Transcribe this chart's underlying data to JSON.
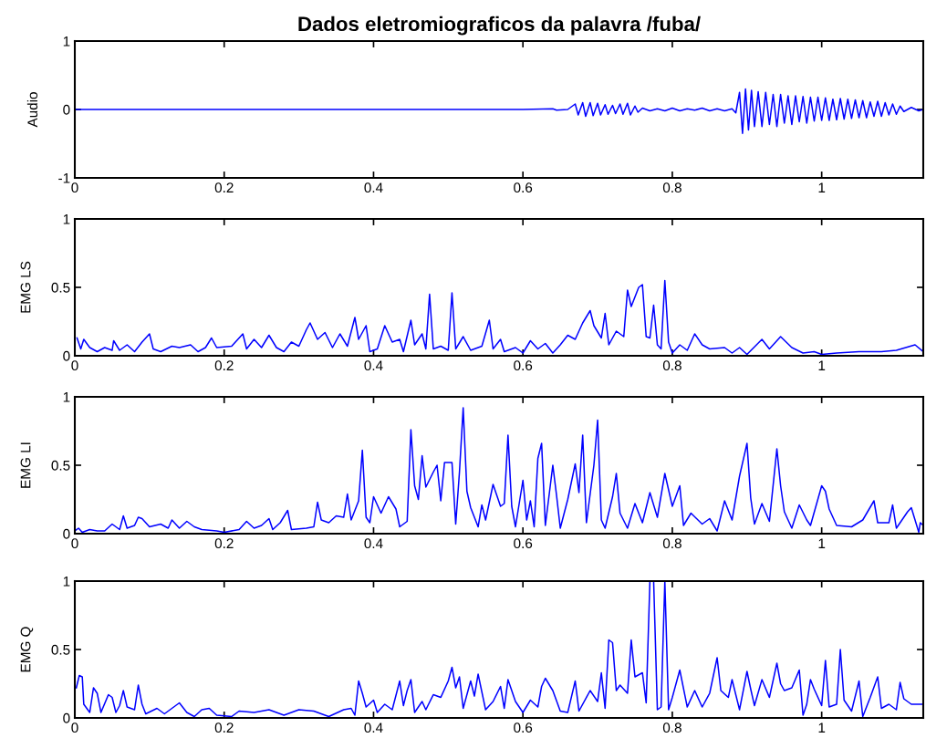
{
  "chart_data": [
    {
      "type": "line",
      "title": "Dados eletromiograficos da palavra /fuba/",
      "ylabel": "Audio",
      "color": "#0000ff",
      "xlim": [
        0,
        1.136
      ],
      "xticks": [
        0,
        0.2,
        0.4,
        0.6,
        0.8,
        1
      ],
      "ylim": [
        -1,
        1
      ],
      "yticks": [
        -1,
        0,
        1
      ],
      "x": [
        0,
        0.3,
        0.6,
        0.64,
        0.645,
        0.66,
        0.67,
        0.674,
        0.68,
        0.684,
        0.69,
        0.694,
        0.7,
        0.704,
        0.71,
        0.714,
        0.72,
        0.724,
        0.73,
        0.734,
        0.74,
        0.744,
        0.75,
        0.754,
        0.76,
        0.77,
        0.78,
        0.79,
        0.8,
        0.81,
        0.82,
        0.83,
        0.84,
        0.85,
        0.86,
        0.87,
        0.88,
        0.885,
        0.89,
        0.894,
        0.898,
        0.902,
        0.906,
        0.91,
        0.915,
        0.92,
        0.925,
        0.93,
        0.935,
        0.94,
        0.945,
        0.95,
        0.955,
        0.96,
        0.965,
        0.97,
        0.975,
        0.98,
        0.985,
        0.99,
        0.995,
        1.0,
        1.005,
        1.01,
        1.015,
        1.02,
        1.025,
        1.03,
        1.035,
        1.04,
        1.045,
        1.05,
        1.055,
        1.06,
        1.065,
        1.07,
        1.075,
        1.08,
        1.085,
        1.09,
        1.095,
        1.1,
        1.105,
        1.11,
        1.12,
        1.13,
        1.136
      ],
      "values": [
        0,
        0,
        0,
        0.01,
        -0.01,
        0,
        0.08,
        -0.08,
        0.1,
        -0.1,
        0.1,
        -0.09,
        0.09,
        -0.08,
        0.07,
        -0.07,
        0.06,
        -0.06,
        0.08,
        -0.07,
        0.09,
        -0.08,
        0.05,
        -0.04,
        0.02,
        -0.02,
        0.01,
        -0.02,
        0.02,
        -0.02,
        0.01,
        -0.01,
        0.02,
        -0.02,
        0.01,
        -0.02,
        0.01,
        -0.05,
        0.25,
        -0.35,
        0.3,
        -0.3,
        0.28,
        -0.25,
        0.26,
        -0.25,
        0.25,
        -0.22,
        0.22,
        -0.25,
        0.22,
        -0.2,
        0.2,
        -0.22,
        0.2,
        -0.18,
        0.19,
        -0.2,
        0.18,
        -0.17,
        0.18,
        -0.16,
        0.17,
        -0.16,
        0.15,
        -0.15,
        0.16,
        -0.14,
        0.15,
        -0.13,
        0.14,
        -0.12,
        0.13,
        -0.12,
        0.11,
        -0.1,
        0.12,
        -0.1,
        0.1,
        -0.08,
        0.08,
        -0.07,
        0.05,
        -0.03,
        0.03,
        -0.02,
        0
      ]
    },
    {
      "type": "line",
      "ylabel": "EMG LS",
      "color": "#0000ff",
      "xlim": [
        0,
        1.136
      ],
      "xticks": [
        0,
        0.2,
        0.4,
        0.6,
        0.8,
        1
      ],
      "ylim": [
        0,
        1
      ],
      "yticks": [
        0,
        0.5,
        1
      ],
      "x": [
        0.003,
        0.008,
        0.012,
        0.02,
        0.03,
        0.04,
        0.05,
        0.052,
        0.06,
        0.07,
        0.08,
        0.09,
        0.1,
        0.105,
        0.115,
        0.13,
        0.14,
        0.155,
        0.165,
        0.175,
        0.183,
        0.19,
        0.21,
        0.225,
        0.23,
        0.24,
        0.25,
        0.26,
        0.27,
        0.28,
        0.29,
        0.3,
        0.31,
        0.315,
        0.325,
        0.335,
        0.345,
        0.355,
        0.365,
        0.375,
        0.38,
        0.39,
        0.395,
        0.405,
        0.415,
        0.425,
        0.435,
        0.44,
        0.45,
        0.455,
        0.465,
        0.47,
        0.475,
        0.48,
        0.49,
        0.5,
        0.505,
        0.51,
        0.52,
        0.53,
        0.545,
        0.555,
        0.56,
        0.57,
        0.575,
        0.59,
        0.6,
        0.61,
        0.62,
        0.63,
        0.64,
        0.65,
        0.66,
        0.67,
        0.68,
        0.69,
        0.695,
        0.705,
        0.71,
        0.715,
        0.725,
        0.735,
        0.74,
        0.745,
        0.755,
        0.76,
        0.765,
        0.77,
        0.775,
        0.78,
        0.785,
        0.79,
        0.795,
        0.8,
        0.81,
        0.82,
        0.83,
        0.84,
        0.85,
        0.87,
        0.88,
        0.89,
        0.9,
        0.92,
        0.93,
        0.945,
        0.96,
        0.975,
        0.99,
        1.0,
        1.02,
        1.05,
        1.08,
        1.1,
        1.125,
        1.136
      ],
      "values": [
        0.13,
        0.05,
        0.12,
        0.06,
        0.03,
        0.06,
        0.04,
        0.11,
        0.04,
        0.08,
        0.03,
        0.1,
        0.16,
        0.05,
        0.03,
        0.07,
        0.06,
        0.08,
        0.03,
        0.06,
        0.13,
        0.06,
        0.07,
        0.16,
        0.05,
        0.12,
        0.06,
        0.15,
        0.06,
        0.03,
        0.1,
        0.07,
        0.19,
        0.24,
        0.12,
        0.17,
        0.06,
        0.16,
        0.07,
        0.28,
        0.12,
        0.22,
        0.03,
        0.05,
        0.22,
        0.1,
        0.12,
        0.03,
        0.26,
        0.08,
        0.16,
        0.05,
        0.45,
        0.05,
        0.07,
        0.04,
        0.46,
        0.05,
        0.14,
        0.04,
        0.07,
        0.26,
        0.05,
        0.12,
        0.03,
        0.06,
        0.02,
        0.11,
        0.05,
        0.09,
        0.02,
        0.08,
        0.15,
        0.12,
        0.24,
        0.33,
        0.22,
        0.13,
        0.31,
        0.08,
        0.18,
        0.14,
        0.48,
        0.36,
        0.5,
        0.52,
        0.14,
        0.13,
        0.37,
        0.08,
        0.05,
        0.55,
        0.1,
        0.02,
        0.08,
        0.04,
        0.16,
        0.08,
        0.05,
        0.06,
        0.02,
        0.06,
        0.01,
        0.12,
        0.05,
        0.14,
        0.06,
        0.02,
        0.03,
        0.01,
        0.02,
        0.03,
        0.03,
        0.04,
        0.08,
        0.03
      ]
    },
    {
      "type": "line",
      "ylabel": "EMG LI",
      "color": "#0000ff",
      "xlim": [
        0,
        1.136
      ],
      "xticks": [
        0,
        0.2,
        0.4,
        0.6,
        0.8,
        1
      ],
      "ylim": [
        0,
        1
      ],
      "yticks": [
        0,
        0.5,
        1
      ],
      "x": [
        0,
        0.005,
        0.01,
        0.02,
        0.03,
        0.04,
        0.05,
        0.06,
        0.065,
        0.07,
        0.08,
        0.085,
        0.09,
        0.1,
        0.115,
        0.125,
        0.13,
        0.14,
        0.15,
        0.16,
        0.17,
        0.19,
        0.2,
        0.22,
        0.23,
        0.24,
        0.25,
        0.26,
        0.265,
        0.275,
        0.285,
        0.29,
        0.31,
        0.32,
        0.325,
        0.33,
        0.34,
        0.35,
        0.36,
        0.365,
        0.37,
        0.38,
        0.385,
        0.39,
        0.395,
        0.4,
        0.41,
        0.42,
        0.43,
        0.435,
        0.445,
        0.45,
        0.455,
        0.46,
        0.465,
        0.47,
        0.48,
        0.485,
        0.49,
        0.495,
        0.505,
        0.51,
        0.515,
        0.52,
        0.525,
        0.53,
        0.54,
        0.545,
        0.55,
        0.56,
        0.57,
        0.575,
        0.58,
        0.585,
        0.59,
        0.6,
        0.605,
        0.61,
        0.615,
        0.62,
        0.625,
        0.63,
        0.64,
        0.645,
        0.65,
        0.66,
        0.67,
        0.675,
        0.68,
        0.685,
        0.695,
        0.7,
        0.705,
        0.71,
        0.72,
        0.725,
        0.73,
        0.74,
        0.75,
        0.76,
        0.77,
        0.78,
        0.79,
        0.8,
        0.81,
        0.815,
        0.825,
        0.84,
        0.85,
        0.86,
        0.87,
        0.88,
        0.89,
        0.9,
        0.905,
        0.91,
        0.92,
        0.93,
        0.94,
        0.945,
        0.95,
        0.96,
        0.97,
        0.98,
        0.985,
        1.0,
        1.005,
        1.01,
        1.02,
        1.04,
        1.055,
        1.07,
        1.075,
        1.09,
        1.095,
        1.1,
        1.115,
        1.12,
        1.13,
        1.132,
        1.136
      ],
      "values": [
        0.02,
        0.04,
        0.01,
        0.03,
        0.02,
        0.02,
        0.07,
        0.03,
        0.13,
        0.04,
        0.06,
        0.12,
        0.11,
        0.05,
        0.07,
        0.04,
        0.1,
        0.04,
        0.09,
        0.05,
        0.03,
        0.02,
        0.01,
        0.03,
        0.09,
        0.04,
        0.06,
        0.11,
        0.03,
        0.08,
        0.17,
        0.03,
        0.04,
        0.05,
        0.23,
        0.1,
        0.08,
        0.13,
        0.12,
        0.29,
        0.1,
        0.24,
        0.61,
        0.12,
        0.08,
        0.27,
        0.15,
        0.27,
        0.18,
        0.05,
        0.09,
        0.76,
        0.35,
        0.25,
        0.57,
        0.34,
        0.45,
        0.5,
        0.24,
        0.52,
        0.52,
        0.07,
        0.45,
        0.92,
        0.31,
        0.19,
        0.05,
        0.21,
        0.1,
        0.36,
        0.2,
        0.22,
        0.72,
        0.2,
        0.05,
        0.39,
        0.1,
        0.24,
        0.05,
        0.55,
        0.66,
        0.06,
        0.5,
        0.28,
        0.04,
        0.25,
        0.51,
        0.3,
        0.72,
        0.08,
        0.5,
        0.83,
        0.1,
        0.04,
        0.27,
        0.44,
        0.15,
        0.04,
        0.22,
        0.08,
        0.3,
        0.12,
        0.44,
        0.2,
        0.35,
        0.06,
        0.15,
        0.07,
        0.11,
        0.02,
        0.24,
        0.1,
        0.42,
        0.66,
        0.26,
        0.07,
        0.22,
        0.09,
        0.62,
        0.35,
        0.16,
        0.04,
        0.21,
        0.1,
        0.06,
        0.35,
        0.31,
        0.18,
        0.06,
        0.05,
        0.1,
        0.24,
        0.08,
        0.08,
        0.21,
        0.04,
        0.16,
        0.19,
        0.01,
        0.08,
        0.06
      ]
    },
    {
      "type": "line",
      "ylabel": "EMG Q",
      "color": "#0000ff",
      "xlim": [
        0,
        1.136
      ],
      "xticks": [
        0,
        0.2,
        0.4,
        0.6,
        0.8,
        1
      ],
      "ylim": [
        0,
        1
      ],
      "yticks": [
        0,
        0.5,
        1
      ],
      "x": [
        0.002,
        0.006,
        0.01,
        0.012,
        0.02,
        0.025,
        0.03,
        0.035,
        0.045,
        0.05,
        0.055,
        0.06,
        0.065,
        0.07,
        0.08,
        0.085,
        0.09,
        0.095,
        0.11,
        0.12,
        0.13,
        0.14,
        0.15,
        0.16,
        0.17,
        0.18,
        0.19,
        0.21,
        0.22,
        0.24,
        0.26,
        0.28,
        0.3,
        0.32,
        0.34,
        0.36,
        0.37,
        0.375,
        0.38,
        0.385,
        0.39,
        0.4,
        0.405,
        0.415,
        0.425,
        0.435,
        0.44,
        0.445,
        0.45,
        0.455,
        0.465,
        0.47,
        0.48,
        0.49,
        0.5,
        0.505,
        0.51,
        0.515,
        0.52,
        0.53,
        0.535,
        0.54,
        0.55,
        0.56,
        0.57,
        0.575,
        0.58,
        0.59,
        0.6,
        0.61,
        0.62,
        0.625,
        0.63,
        0.64,
        0.65,
        0.66,
        0.67,
        0.675,
        0.69,
        0.7,
        0.705,
        0.71,
        0.715,
        0.72,
        0.725,
        0.73,
        0.74,
        0.745,
        0.75,
        0.76,
        0.765,
        0.77,
        0.775,
        0.78,
        0.785,
        0.79,
        0.795,
        0.8,
        0.81,
        0.82,
        0.83,
        0.84,
        0.85,
        0.86,
        0.865,
        0.875,
        0.88,
        0.89,
        0.9,
        0.905,
        0.91,
        0.92,
        0.93,
        0.94,
        0.945,
        0.95,
        0.96,
        0.97,
        0.975,
        0.98,
        0.985,
        0.99,
        1.0,
        1.005,
        1.01,
        1.02,
        1.025,
        1.03,
        1.04,
        1.05,
        1.055,
        1.065,
        1.075,
        1.08,
        1.09,
        1.1,
        1.105,
        1.11,
        1.12,
        1.136
      ],
      "values": [
        0.22,
        0.31,
        0.3,
        0.1,
        0.04,
        0.22,
        0.18,
        0.04,
        0.17,
        0.15,
        0.04,
        0.09,
        0.2,
        0.08,
        0.06,
        0.24,
        0.1,
        0.03,
        0.07,
        0.03,
        0.07,
        0.11,
        0.04,
        0.01,
        0.06,
        0.07,
        0.02,
        0.01,
        0.05,
        0.04,
        0.06,
        0.02,
        0.06,
        0.05,
        0.01,
        0.06,
        0.07,
        0.02,
        0.27,
        0.18,
        0.08,
        0.13,
        0.04,
        0.1,
        0.06,
        0.27,
        0.09,
        0.2,
        0.28,
        0.04,
        0.12,
        0.06,
        0.17,
        0.15,
        0.27,
        0.37,
        0.22,
        0.3,
        0.07,
        0.27,
        0.16,
        0.32,
        0.06,
        0.12,
        0.23,
        0.07,
        0.28,
        0.12,
        0.04,
        0.13,
        0.08,
        0.23,
        0.29,
        0.2,
        0.05,
        0.04,
        0.27,
        0.05,
        0.2,
        0.12,
        0.33,
        0.07,
        0.57,
        0.55,
        0.2,
        0.24,
        0.18,
        0.57,
        0.3,
        0.33,
        0.11,
        1.0,
        1.0,
        0.06,
        0.08,
        1.0,
        0.06,
        0.15,
        0.35,
        0.08,
        0.2,
        0.08,
        0.18,
        0.44,
        0.2,
        0.15,
        0.28,
        0.06,
        0.34,
        0.21,
        0.09,
        0.28,
        0.15,
        0.4,
        0.25,
        0.2,
        0.22,
        0.35,
        0.02,
        0.1,
        0.28,
        0.21,
        0.09,
        0.42,
        0.08,
        0.1,
        0.5,
        0.13,
        0.05,
        0.27,
        0.01,
        0.15,
        0.3,
        0.07,
        0.1,
        0.06,
        0.26,
        0.14,
        0.1,
        0.1
      ]
    }
  ]
}
